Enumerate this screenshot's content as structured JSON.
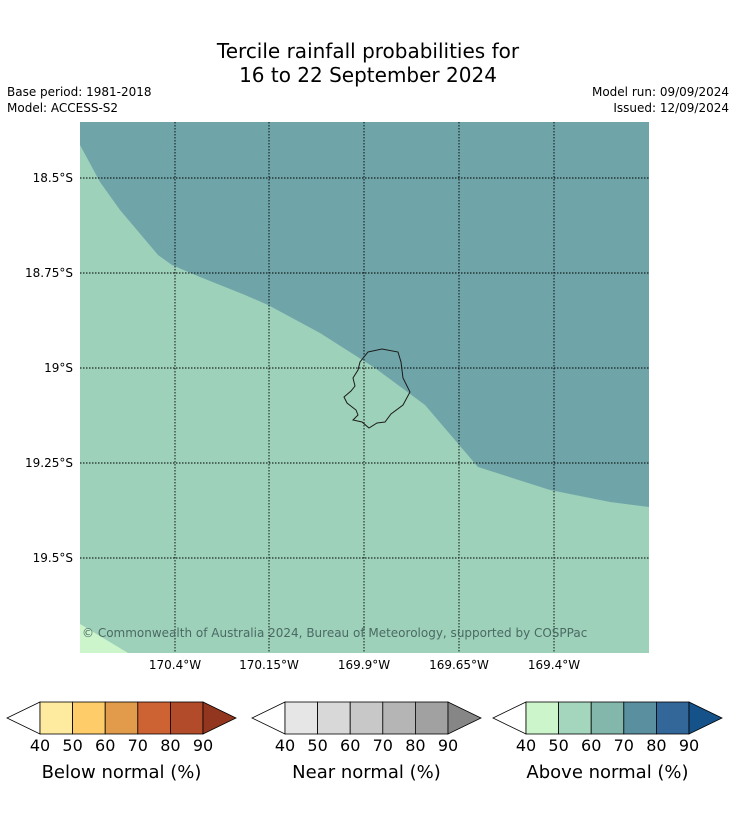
{
  "title": {
    "line1": "Tercile rainfall probabilities for",
    "line2": "16 to 22 September 2024"
  },
  "meta": {
    "base_period": "Base period: 1981-2018",
    "model": "Model: ACCESS-S2",
    "model_run": "Model run: 09/09/2024",
    "issued": "Issued: 12/09/2024"
  },
  "map": {
    "lat_labels": [
      "18.5°S",
      "18.75°S",
      "19°S",
      "19.25°S",
      "19.5°S"
    ],
    "lon_labels": [
      "170.4°W",
      "170.15°W",
      "169.9°W",
      "169.65°W",
      "169.4°W"
    ],
    "copyright": "© Commonwealth of Australia 2024, Bureau of Meteorology, supported by COSPPac",
    "region_colors": {
      "above_60_70": "#6fa5a8",
      "above_50_60": "#9ed1ba",
      "above_40_50": "#ccf5cc"
    }
  },
  "colorbars": [
    {
      "label": "Below normal (%)",
      "ticks": [
        "40",
        "50",
        "60",
        "70",
        "80",
        "90"
      ],
      "low_color": "#ffffff",
      "colors": [
        "#ffeb9f",
        "#fecd6a",
        "#e29b4b",
        "#cd6233",
        "#b24b29"
      ],
      "high_color": "#92361f"
    },
    {
      "label": "Near normal (%)",
      "ticks": [
        "40",
        "50",
        "60",
        "70",
        "80",
        "90"
      ],
      "low_color": "#ffffff",
      "colors": [
        "#e6e6e6",
        "#d8d8d8",
        "#c8c8c8",
        "#b5b5b5",
        "#a1a1a1"
      ],
      "high_color": "#868686"
    },
    {
      "label": "Above normal (%)",
      "ticks": [
        "40",
        "50",
        "60",
        "70",
        "80",
        "90"
      ],
      "low_color": "#ffffff",
      "colors": [
        "#ccf5cc",
        "#a3d6bd",
        "#84b7ab",
        "#5a8f9f",
        "#336699"
      ],
      "high_color": "#16528a"
    }
  ]
}
